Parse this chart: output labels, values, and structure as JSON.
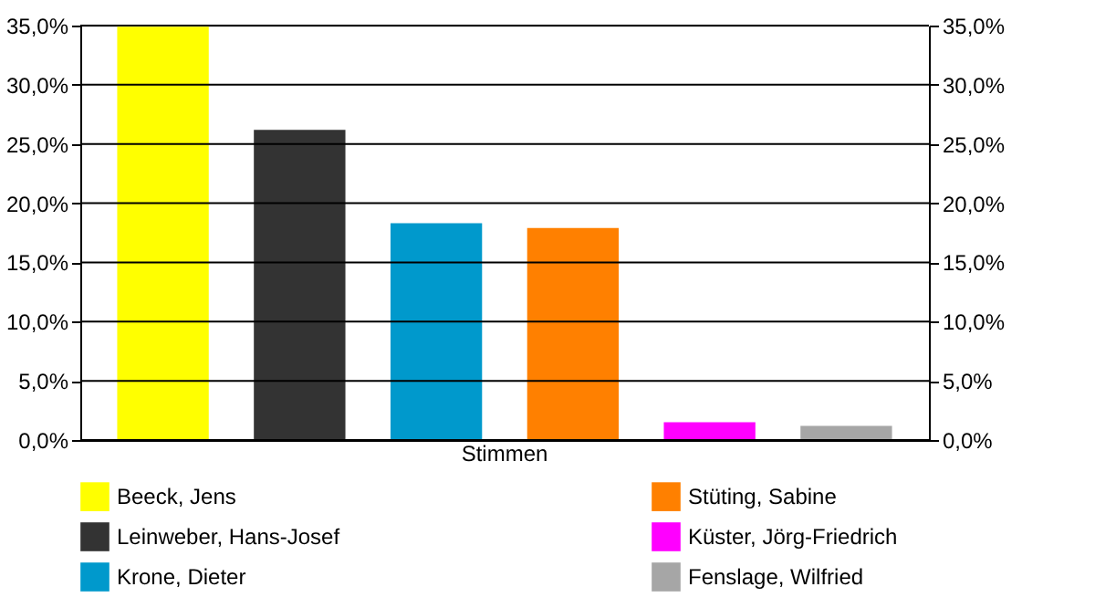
{
  "chart_data": {
    "type": "bar",
    "categories": [
      "Stimmen"
    ],
    "series": [
      {
        "name": "Beeck, Jens",
        "color": "#ffff00",
        "values": [
          34.9
        ]
      },
      {
        "name": "Leinweber, Hans-Josef",
        "color": "#333333",
        "values": [
          26.2
        ]
      },
      {
        "name": "Krone, Dieter",
        "color": "#0099cc",
        "values": [
          18.3
        ]
      },
      {
        "name": "Stüting, Sabine",
        "color": "#ff8000",
        "values": [
          17.9
        ]
      },
      {
        "name": "Küster, Jörg-Friedrich",
        "color": "#ff00ff",
        "values": [
          1.5
        ]
      },
      {
        "name": "Fenslage, Wilfried",
        "color": "#a6a6a6",
        "values": [
          1.2
        ]
      }
    ],
    "ylim": [
      0,
      35
    ],
    "yticks": [
      {
        "value": 0,
        "label": "0,0%"
      },
      {
        "value": 5,
        "label": "5,0%"
      },
      {
        "value": 10,
        "label": "10,0%"
      },
      {
        "value": 15,
        "label": "15,0%"
      },
      {
        "value": 20,
        "label": "20,0%"
      },
      {
        "value": 25,
        "label": "25,0%"
      },
      {
        "value": 30,
        "label": "30,0%"
      },
      {
        "value": 35,
        "label": "35,0%"
      }
    ],
    "grid": "y",
    "legend": "bottom"
  }
}
